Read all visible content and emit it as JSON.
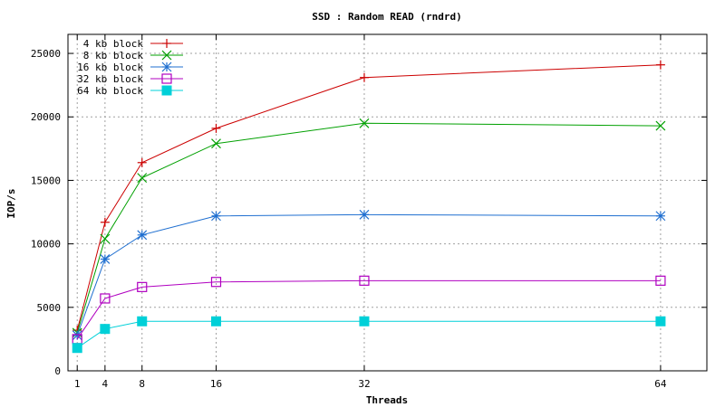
{
  "chart_data": {
    "type": "line",
    "title": "SSD : Random READ (rndrd)",
    "xlabel": "Threads",
    "ylabel": "IOP/s",
    "xlim": [
      0,
      69
    ],
    "ylim": [
      0,
      26500
    ],
    "xticks": [
      1,
      4,
      8,
      16,
      32,
      64
    ],
    "yticks": [
      0,
      5000,
      10000,
      15000,
      20000,
      25000
    ],
    "grid": true,
    "legend_position": "top-left",
    "x": [
      1,
      4,
      8,
      16,
      32,
      64
    ],
    "series": [
      {
        "name": "4 kb block",
        "color": "#cc0000",
        "marker": "plus",
        "values": [
          3200,
          11700,
          16400,
          19100,
          23100,
          24100
        ]
      },
      {
        "name": "8 kb block",
        "color": "#00a000",
        "marker": "x",
        "values": [
          3000,
          10400,
          15200,
          17900,
          19500,
          19300
        ]
      },
      {
        "name": "16 kb block",
        "color": "#1f6fd0",
        "marker": "star",
        "values": [
          2800,
          8800,
          10700,
          12200,
          12300,
          12200
        ]
      },
      {
        "name": "32 kb block",
        "color": "#b000c0",
        "marker": "square-open",
        "values": [
          2500,
          5700,
          6600,
          7000,
          7100,
          7100
        ]
      },
      {
        "name": "64 kb block",
        "color": "#00d0d8",
        "marker": "square-filled",
        "values": [
          1800,
          3300,
          3900,
          3900,
          3900,
          3900
        ]
      }
    ]
  }
}
